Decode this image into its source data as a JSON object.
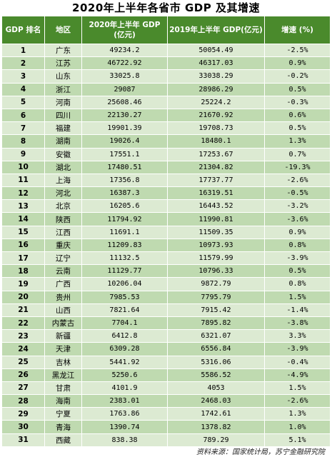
{
  "title": "2020年上半年各省市 GDP 及其增速",
  "headers": {
    "rank": "GDP 排名",
    "region": "地区",
    "gdp2020_l1": "2020年上半年 GDP",
    "gdp2020_l2": "(亿元)",
    "gdp2019": "2019年上半年 GDP(亿元)",
    "growth": "增速 (%)"
  },
  "rows": [
    {
      "rank": "1",
      "region": "广东",
      "gdp2020": "49234.2",
      "gdp2019": "50054.49",
      "growth": "-2.5%"
    },
    {
      "rank": "2",
      "region": "江苏",
      "gdp2020": "46722.92",
      "gdp2019": "46317.03",
      "growth": "0.9%"
    },
    {
      "rank": "3",
      "region": "山东",
      "gdp2020": "33025.8",
      "gdp2019": "33038.29",
      "growth": "-0.2%"
    },
    {
      "rank": "4",
      "region": "浙江",
      "gdp2020": "29087",
      "gdp2019": "28986.29",
      "growth": "0.5%"
    },
    {
      "rank": "5",
      "region": "河南",
      "gdp2020": "25608.46",
      "gdp2019": "25224.2",
      "growth": "-0.3%"
    },
    {
      "rank": "6",
      "region": "四川",
      "gdp2020": "22130.27",
      "gdp2019": "21670.92",
      "growth": "0.6%"
    },
    {
      "rank": "7",
      "region": "福建",
      "gdp2020": "19901.39",
      "gdp2019": "19708.73",
      "growth": "0.5%"
    },
    {
      "rank": "8",
      "region": "湖南",
      "gdp2020": "19026.4",
      "gdp2019": "18480.1",
      "growth": "1.3%"
    },
    {
      "rank": "9",
      "region": "安徽",
      "gdp2020": "17551.1",
      "gdp2019": "17253.67",
      "growth": "0.7%"
    },
    {
      "rank": "10",
      "region": "湖北",
      "gdp2020": "17480.51",
      "gdp2019": "21304.82",
      "growth": "-19.3%"
    },
    {
      "rank": "11",
      "region": "上海",
      "gdp2020": "17356.8",
      "gdp2019": "17737.77",
      "growth": "-2.6%"
    },
    {
      "rank": "12",
      "region": "河北",
      "gdp2020": "16387.3",
      "gdp2019": "16319.51",
      "growth": "-0.5%"
    },
    {
      "rank": "13",
      "region": "北京",
      "gdp2020": "16205.6",
      "gdp2019": "16443.52",
      "growth": "-3.2%"
    },
    {
      "rank": "14",
      "region": "陕西",
      "gdp2020": "11794.92",
      "gdp2019": "11990.81",
      "growth": "-3.6%"
    },
    {
      "rank": "15",
      "region": "江西",
      "gdp2020": "11691.1",
      "gdp2019": "11509.35",
      "growth": "0.9%"
    },
    {
      "rank": "16",
      "region": "重庆",
      "gdp2020": "11209.83",
      "gdp2019": "10973.93",
      "growth": "0.8%"
    },
    {
      "rank": "17",
      "region": "辽宁",
      "gdp2020": "11132.5",
      "gdp2019": "11579.99",
      "growth": "-3.9%"
    },
    {
      "rank": "18",
      "region": "云南",
      "gdp2020": "11129.77",
      "gdp2019": "10796.33",
      "growth": "0.5%"
    },
    {
      "rank": "19",
      "region": "广西",
      "gdp2020": "10206.04",
      "gdp2019": "9872.79",
      "growth": "0.8%"
    },
    {
      "rank": "20",
      "region": "贵州",
      "gdp2020": "7985.53",
      "gdp2019": "7795.79",
      "growth": "1.5%"
    },
    {
      "rank": "21",
      "region": "山西",
      "gdp2020": "7821.64",
      "gdp2019": "7915.42",
      "growth": "-1.4%"
    },
    {
      "rank": "22",
      "region": "内蒙古",
      "gdp2020": "7704.1",
      "gdp2019": "7895.82",
      "growth": "-3.8%"
    },
    {
      "rank": "23",
      "region": "新疆",
      "gdp2020": "6412.8",
      "gdp2019": "6321.07",
      "growth": "3.3%"
    },
    {
      "rank": "24",
      "region": "天津",
      "gdp2020": "6309.28",
      "gdp2019": "6556.84",
      "growth": "-3.9%"
    },
    {
      "rank": "25",
      "region": "吉林",
      "gdp2020": "5441.92",
      "gdp2019": "5316.06",
      "growth": "-0.4%"
    },
    {
      "rank": "26",
      "region": "黑龙江",
      "gdp2020": "5250.6",
      "gdp2019": "5586.52",
      "growth": "-4.9%"
    },
    {
      "rank": "27",
      "region": "甘肃",
      "gdp2020": "4101.9",
      "gdp2019": "4053",
      "growth": "1.5%"
    },
    {
      "rank": "28",
      "region": "海南",
      "gdp2020": "2383.01",
      "gdp2019": "2468.03",
      "growth": "-2.6%"
    },
    {
      "rank": "29",
      "region": "宁夏",
      "gdp2020": "1763.86",
      "gdp2019": "1742.61",
      "growth": "1.3%"
    },
    {
      "rank": "30",
      "region": "青海",
      "gdp2020": "1390.74",
      "gdp2019": "1378.82",
      "growth": "1.0%"
    },
    {
      "rank": "31",
      "region": "西藏",
      "gdp2020": "838.38",
      "gdp2019": "789.29",
      "growth": "5.1%"
    }
  ],
  "source": "资料来源：国家统计局，苏宁金融研究院"
}
